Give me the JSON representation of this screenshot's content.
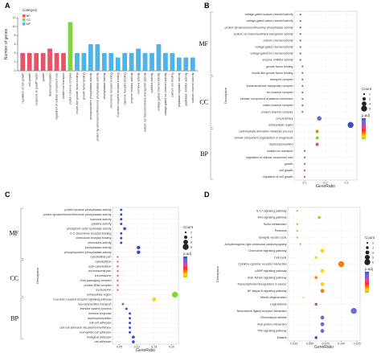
{
  "panels": [
    "A",
    "B",
    "C",
    "D"
  ],
  "colors": {
    "bp": "#e8536a",
    "cc": "#7fd63b",
    "mf": "#4fb3e8",
    "grid": "#ebebeb",
    "bracket": "#555555",
    "gradient": [
      "#3b4cc0",
      "#6b6bd6",
      "#9b59b6",
      "#e84393",
      "#ff2a2a",
      "#ff7a00",
      "#ffd21f",
      "#7ddc1f"
    ]
  },
  "chart_data": [
    {
      "type": "bar",
      "panel": "A",
      "ylabel": "Number of genes",
      "ylim": [
        0,
        12
      ],
      "yticks": [
        0,
        2,
        4,
        6,
        8,
        10,
        12
      ],
      "legend": {
        "title": "Category",
        "items": [
          {
            "key": "BP",
            "label": "BP"
          },
          {
            "key": "CC",
            "label": "CC"
          },
          {
            "key": "MF",
            "label": "MF"
          }
        ],
        "position": "top-left"
      },
      "categories": [
        "regulation of cell growth",
        "cell growth",
        "response to growth factor",
        "growth",
        "dephosphorylation",
        "regulation of cellular component size",
        "sodium ion transport",
        "sodium channel complex",
        "insulin-like growth factor binding",
        "growth factor binding",
        "phosphoprotein phosphatase activity",
        "protein tyrosine/serine/threonine phosphatase activity",
        "phosphatase activity",
        "chemokine receptor binding",
        "G-protein coupled receptor binding",
        "cytokine receptor binding",
        "enzyme inhibitor activity",
        "hormone activity",
        "sodium ion transmembrane transporter activity",
        "cytokine activity",
        "voltage-gated channel activity",
        "voltage-gated ion channel activity",
        "calcium ion binding",
        "peptidase regulator activity",
        "peptidase inhibitor activity",
        "sodium channel activity"
      ],
      "values": [
        4,
        4,
        4,
        4,
        5,
        4,
        4,
        11,
        4,
        4,
        6,
        6,
        4,
        4,
        3,
        4,
        4,
        5,
        4,
        4,
        6,
        4,
        4,
        3,
        3,
        3
      ],
      "groups": [
        "BP",
        "BP",
        "BP",
        "BP",
        "BP",
        "BP",
        "BP",
        "CC",
        "MF",
        "MF",
        "MF",
        "MF",
        "MF",
        "MF",
        "MF",
        "MF",
        "MF",
        "MF",
        "MF",
        "MF",
        "MF",
        "MF",
        "MF",
        "MF",
        "MF",
        "MF"
      ]
    },
    {
      "type": "scatter",
      "panel": "B",
      "xlabel": "GeneRatio",
      "ylabel": "Description",
      "xticks": [
        "0.1",
        "0.2",
        "0.3"
      ],
      "xlim": [
        0.05,
        0.35
      ],
      "sections": [
        {
          "label": "MF",
          "from": 0,
          "to": 9
        },
        {
          "label": "CC",
          "from": 10,
          "to": 17
        },
        {
          "label": "BP",
          "from": 18,
          "to": 25
        }
      ],
      "size_legend": {
        "title": "Count",
        "values": [
          "2",
          "3",
          "4",
          "5"
        ]
      },
      "color_legend": {
        "title": "p.adj"
      },
      "points": [
        {
          "label": "voltage-gated sodium channel activity",
          "x": 0.08,
          "size": 2,
          "p": 0.1
        },
        {
          "label": "voltage-gated cation channel activity",
          "x": 0.08,
          "size": 2,
          "p": 0.1
        },
        {
          "label": "protein tyrosine/serine/threonine phosphatase activity",
          "x": 0.08,
          "size": 2,
          "p": 0.1
        },
        {
          "label": "sodium ion transmembrane transporter activity",
          "x": 0.08,
          "size": 2,
          "p": 0.1
        },
        {
          "label": "sodium channel activity",
          "x": 0.08,
          "size": 2,
          "p": 0.1
        },
        {
          "label": "voltage-gated channel activity",
          "x": 0.08,
          "size": 2,
          "p": 0.1
        },
        {
          "label": "voltage-gated ion channel activity",
          "x": 0.08,
          "size": 2,
          "p": 0.1
        },
        {
          "label": "enzyme inhibitor activity",
          "x": 0.08,
          "size": 2,
          "p": 0.1
        },
        {
          "label": "growth factor binding",
          "x": 0.09,
          "size": 2,
          "p": 0.1
        },
        {
          "label": "insulin-like growth factor binding",
          "x": 0.09,
          "size": 2,
          "p": 0.1
        },
        {
          "label": "transport complex",
          "x": 0.09,
          "size": 2,
          "p": 0.12
        },
        {
          "label": "transmembrane transporter complex",
          "x": 0.09,
          "size": 2,
          "p": 0.12
        },
        {
          "label": "ion channel complex",
          "x": 0.09,
          "size": 2,
          "p": 0.12
        },
        {
          "label": "intrinsic component of plasma membrane",
          "x": 0.09,
          "size": 2,
          "p": 0.12
        },
        {
          "label": "cation channel complex",
          "x": 0.09,
          "size": 2,
          "p": 0.12
        },
        {
          "label": "sodium channel complex",
          "x": 0.09,
          "size": 2,
          "p": 0.12
        },
        {
          "label": "cell periphery",
          "x": 0.17,
          "size": 4,
          "p": 0.1
        },
        {
          "label": "extracellular region",
          "x": 0.32,
          "size": 5,
          "p": 0.08
        },
        {
          "label": "carbohydrate derivative metabolic process",
          "x": 0.16,
          "size": 3,
          "p": 0.2
        },
        {
          "label": "cellular component organization or biogenesis",
          "x": 0.16,
          "size": 3,
          "p": 0.24
        },
        {
          "label": "dephosphorylation",
          "x": 0.16,
          "size": 3,
          "p": 0.14
        },
        {
          "label": "sodium ion transport",
          "x": 0.1,
          "size": 2,
          "p": 0.12
        },
        {
          "label": "regulation of cellular component size",
          "x": 0.1,
          "size": 2,
          "p": 0.12
        },
        {
          "label": "growth",
          "x": 0.1,
          "size": 2,
          "p": 0.12
        },
        {
          "label": "cell growth",
          "x": 0.1,
          "size": 2,
          "p": 0.12
        },
        {
          "label": "regulation of cell growth",
          "x": 0.1,
          "size": 2,
          "p": 0.12
        }
      ]
    },
    {
      "type": "scatter",
      "panel": "C",
      "xlabel": "GeneRatio",
      "ylabel": "Description",
      "xticks": [
        "0.05",
        "0.10",
        "0.15",
        "0.20"
      ],
      "xlim": [
        0.03,
        0.22
      ],
      "sections": [
        {
          "label": "MF",
          "from": 0,
          "to": 10
        },
        {
          "label": "CC",
          "from": 11,
          "to": 18
        },
        {
          "label": "BP",
          "from": 19,
          "to": 27
        }
      ],
      "size_legend": {
        "title": "Count",
        "values": [
          "2",
          "4",
          "6",
          "8"
        ]
      },
      "color_legend": {
        "title": "p.adj"
      },
      "points": [
        {
          "label": "protein tyrosine phosphatase activity",
          "x": 0.055,
          "size": 2,
          "p": 0.1
        },
        {
          "label": "protein tyrosine/serine/threonine phosphatase activity",
          "x": 0.055,
          "size": 2,
          "p": 0.1
        },
        {
          "label": "hormone activity",
          "x": 0.055,
          "size": 2,
          "p": 0.1
        },
        {
          "label": "cytokine activity",
          "x": 0.055,
          "size": 2,
          "p": 0.1
        },
        {
          "label": "phosphoric ester hydrolase activity",
          "x": 0.065,
          "size": 3,
          "p": 0.1
        },
        {
          "label": "C-C chemokine receptor binding",
          "x": 0.055,
          "size": 2,
          "p": 0.1
        },
        {
          "label": "chemokine receptor binding",
          "x": 0.055,
          "size": 2,
          "p": 0.1
        },
        {
          "label": "chemokine activity",
          "x": 0.055,
          "size": 2,
          "p": 0.1
        },
        {
          "label": "phosphatase activity",
          "x": 0.105,
          "size": 4,
          "p": 0.1
        },
        {
          "label": "phosphoprotein phosphatase activity",
          "x": 0.105,
          "size": 4,
          "p": 0.1
        },
        {
          "label": "cytoskeletal part",
          "x": 0.045,
          "size": 1,
          "p": 0.15
        },
        {
          "label": "cytoskeleton",
          "x": 0.045,
          "size": 1,
          "p": 0.15
        },
        {
          "label": "actin cytoskeleton",
          "x": 0.045,
          "size": 1,
          "p": 0.15
        },
        {
          "label": "chromosomal part",
          "x": 0.045,
          "size": 1,
          "p": 0.15
        },
        {
          "label": "chromosome",
          "x": 0.045,
          "size": 1,
          "p": 0.15
        },
        {
          "label": "DNA packaging complex",
          "x": 0.045,
          "size": 1,
          "p": 0.15
        },
        {
          "label": "protein-DNA complex",
          "x": 0.045,
          "size": 1,
          "p": 0.15
        },
        {
          "label": "nucleosome",
          "x": 0.045,
          "size": 1,
          "p": 0.15
        },
        {
          "label": "extracellular region",
          "x": 0.21,
          "size": 8,
          "p": 0.23
        },
        {
          "label": "G-protein coupled receptor signaling pathway",
          "x": 0.15,
          "size": 5,
          "p": 0.22
        },
        {
          "label": "neurotransmitter transport",
          "x": 0.06,
          "size": 2,
          "p": 0.12
        },
        {
          "label": "immune system process",
          "x": 0.07,
          "size": 2,
          "p": 0.1
        },
        {
          "label": "immune response",
          "x": 0.08,
          "size": 2,
          "p": 0.1
        },
        {
          "label": "dephosphorylation",
          "x": 0.08,
          "size": 2,
          "p": 0.1
        },
        {
          "label": "cell-cell adhesion",
          "x": 0.08,
          "size": 2,
          "p": 0.1
        },
        {
          "label": "cell-cell adhesion via plasma-membrane",
          "x": 0.08,
          "size": 2,
          "p": 0.1
        },
        {
          "label": "homophilic cell adhesion",
          "x": 0.08,
          "size": 2,
          "p": 0.1
        },
        {
          "label": "biological adhesion",
          "x": 0.09,
          "size": 3,
          "p": 0.1
        },
        {
          "label": "cell adhesion",
          "x": 0.09,
          "size": 3,
          "p": 0.1
        }
      ]
    },
    {
      "type": "scatter",
      "panel": "D",
      "xlabel": "GeneRatio",
      "ylabel": "Description",
      "xticks": [
        "0.025",
        "0.050",
        "0.075",
        "0.100",
        "0.125"
      ],
      "xlim": [
        0.015,
        0.13
      ],
      "size_legend": {
        "title": "Count",
        "values": [
          "2",
          "3",
          "4",
          "5",
          "6"
        ]
      },
      "color_legend": {
        "title": "p.adj"
      },
      "points": [
        {
          "label": "IL-17 signaling pathway",
          "x": 0.03,
          "size": 2,
          "p": 0.25
        },
        {
          "label": "Wnt signaling pathway",
          "x": 0.065,
          "size": 3,
          "p": 0.25
        },
        {
          "label": "Sulfur metabolism",
          "x": 0.03,
          "size": 2,
          "p": 0.25
        },
        {
          "label": "Pertussis",
          "x": 0.03,
          "size": 2,
          "p": 0.25
        },
        {
          "label": "Synaptic vesicle cycle",
          "x": 0.03,
          "size": 2,
          "p": 0.25
        },
        {
          "label": "Arrhythmogenic right ventricular cardiomyopathy",
          "x": 0.035,
          "size": 2,
          "p": 0.24
        },
        {
          "label": "Chemokine signaling pathway",
          "x": 0.07,
          "size": 4,
          "p": 0.23
        },
        {
          "label": "Cell cycle",
          "x": 0.06,
          "size": 3,
          "p": 0.23
        },
        {
          "label": "Cytokine-cytokine receptor interaction",
          "x": 0.1,
          "size": 6,
          "p": 0.2
        },
        {
          "label": "cAMP signaling pathway",
          "x": 0.07,
          "size": 4,
          "p": 0.22
        },
        {
          "label": "AGE-RAGE signaling pathway",
          "x": 0.06,
          "size": 3,
          "p": 0.2
        },
        {
          "label": "Transcriptional misregulation in cancer",
          "x": 0.07,
          "size": 4,
          "p": 0.21
        },
        {
          "label": "NF-kappa B signaling pathway",
          "x": 0.07,
          "size": 4,
          "p": 0.2
        },
        {
          "label": "Mitotic degeneration",
          "x": 0.04,
          "size": 2,
          "p": 0.22
        },
        {
          "label": "Legionellosis",
          "x": 0.06,
          "size": 3,
          "p": 0.12
        },
        {
          "label": "Neuroactive ligand-receptor interaction",
          "x": 0.12,
          "size": 6,
          "p": 0.08
        },
        {
          "label": "Rheumatoid arthritis",
          "x": 0.07,
          "size": 4,
          "p": 0.1
        },
        {
          "label": "Viral protein interaction",
          "x": 0.07,
          "size": 4,
          "p": 0.08
        },
        {
          "label": "TNF signaling pathway",
          "x": 0.07,
          "size": 4,
          "p": 0.08
        },
        {
          "label": "Malaria",
          "x": 0.06,
          "size": 3,
          "p": 0.06
        }
      ]
    }
  ]
}
